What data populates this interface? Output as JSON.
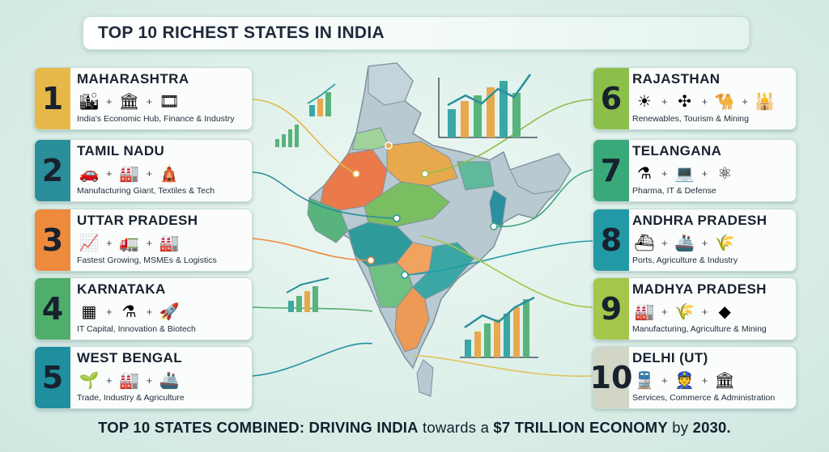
{
  "title": "TOP 10 RICHEST STATES IN INDIA",
  "states": [
    {
      "rank": "1",
      "name": "MAHARASHTRA",
      "desc": "India's Economic Hub, Finance & Industry",
      "color": "#e6b84a",
      "icons": [
        "skyline-icon",
        "stock-exchange-icon",
        "film-reel-icon"
      ]
    },
    {
      "rank": "2",
      "name": "TAMIL NADU",
      "desc": "Manufacturing Giant, Textiles & Tech",
      "color": "#2a8f9a",
      "icons": [
        "car-icon",
        "factory-icon",
        "temple-icon"
      ]
    },
    {
      "rank": "3",
      "name": "UTTAR PRADESH",
      "desc": "Fastest Growing, MSMEs & Logistics",
      "color": "#ee8a3c",
      "icons": [
        "growth-chart-icon",
        "dump-truck-icon",
        "factory-icon"
      ]
    },
    {
      "rank": "4",
      "name": "KARNATAKA",
      "desc": "IT Capital, Innovation & Biotech",
      "color": "#4fae6a",
      "icons": [
        "microchip-icon",
        "flask-icon",
        "rocket-icon"
      ]
    },
    {
      "rank": "5",
      "name": "WEST BENGAL",
      "desc": "Trade, Industry & Agriculture",
      "color": "#1f8fa0",
      "icons": [
        "plant-icon",
        "factory-icon",
        "cargo-ship-icon"
      ]
    },
    {
      "rank": "6",
      "name": "RAJASTHAN",
      "desc": "Renewables, Tourism & Mining",
      "color": "#8cbf4a",
      "icons": [
        "solar-panel-icon",
        "wind-turbine-icon",
        "camel-icon",
        "palace-icon"
      ]
    },
    {
      "rank": "7",
      "name": "TELANGANA",
      "desc": "Pharma, IT & Defense",
      "color": "#3aa97a",
      "icons": [
        "pharma-icon",
        "laptop-icon",
        "atom-icon"
      ]
    },
    {
      "rank": "8",
      "name": "ANDHRA PRADESH",
      "desc": "Ports, Agriculture & Industry",
      "color": "#229aa5",
      "icons": [
        "port-crane-icon",
        "ship-icon",
        "wheat-icon"
      ]
    },
    {
      "rank": "9",
      "name": "MADHYA PRADESH",
      "desc": "Manufacturing, Agriculture & Mining",
      "color": "#a4c64a",
      "icons": [
        "factory-icon",
        "wheat-icon",
        "diamond-icon"
      ]
    },
    {
      "rank": "10",
      "name": "DELHI (UT)",
      "desc": "Services, Commerce & Administration",
      "color": "#d2d6c6",
      "icons": [
        "metro-train-icon",
        "officer-icon",
        "government-building-icon"
      ]
    }
  ],
  "footer": {
    "part1": "TOP 10 STATES COMBINED: DRIVING INDIA",
    "part2": " towards a ",
    "part3": "$7 TRILLION ECONOMY",
    "part4": " by ",
    "part5": "2030."
  }
}
